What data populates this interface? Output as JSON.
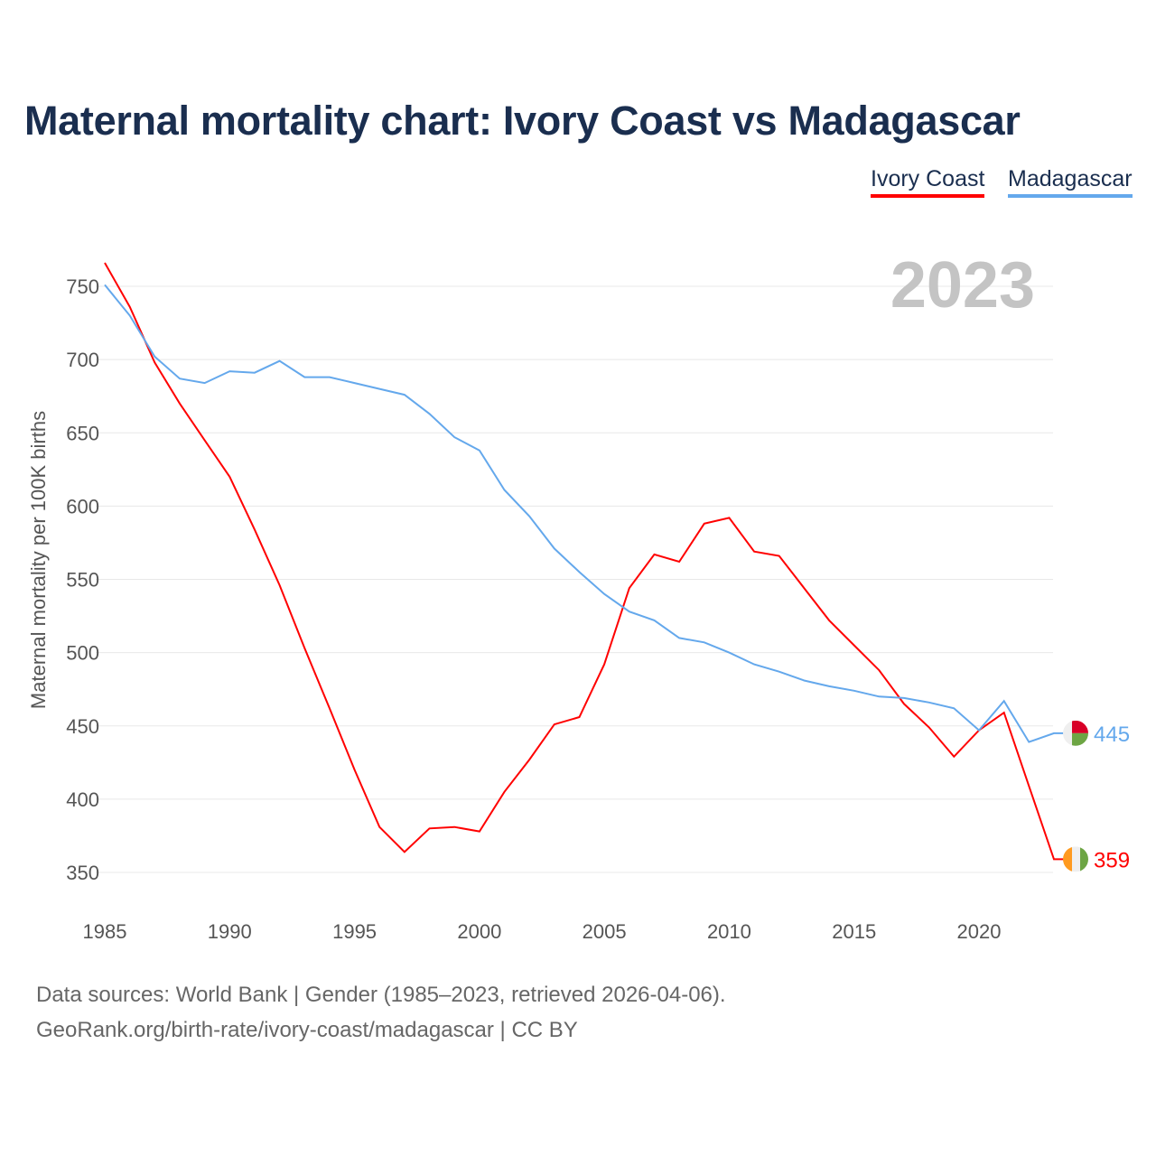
{
  "chart_data": {
    "type": "line",
    "title": "Maternal mortality chart: Ivory Coast vs Madagascar",
    "ylabel": "Maternal mortality per 100K births",
    "xlabel": "",
    "year_label": "2023",
    "xlim": [
      1985,
      2023
    ],
    "ylim": [
      330,
      770
    ],
    "xticks": [
      1985,
      1990,
      1995,
      2000,
      2005,
      2010,
      2015,
      2020
    ],
    "yticks": [
      350,
      400,
      450,
      500,
      550,
      600,
      650,
      700,
      750
    ],
    "grid": true,
    "legend_position": "top-right",
    "x": [
      1985,
      1986,
      1987,
      1988,
      1989,
      1990,
      1991,
      1992,
      1993,
      1994,
      1995,
      1996,
      1997,
      1998,
      1999,
      2000,
      2001,
      2002,
      2003,
      2004,
      2005,
      2006,
      2007,
      2008,
      2009,
      2010,
      2011,
      2012,
      2013,
      2014,
      2015,
      2016,
      2017,
      2018,
      2019,
      2020,
      2021,
      2022,
      2023
    ],
    "series": [
      {
        "name": "Ivory Coast",
        "color": "#ff0000",
        "end_label": "359",
        "values": [
          766,
          736,
          698,
          670,
          645,
          620,
          584,
          546,
          503,
          462,
          420,
          381,
          364,
          380,
          381,
          378,
          405,
          427,
          451,
          456,
          492,
          544,
          567,
          562,
          588,
          592,
          569,
          566,
          544,
          522,
          505,
          488,
          465,
          449,
          429,
          447,
          459,
          409,
          359
        ]
      },
      {
        "name": "Madagascar",
        "color": "#64a8ec",
        "end_label": "445",
        "values": [
          751,
          730,
          702,
          687,
          684,
          692,
          691,
          699,
          688,
          688,
          684,
          680,
          676,
          663,
          647,
          638,
          611,
          593,
          571,
          555,
          540,
          528,
          522,
          510,
          507,
          500,
          492,
          487,
          481,
          477,
          474,
          470,
          469,
          466,
          462,
          447,
          467,
          439,
          445
        ]
      }
    ]
  },
  "footer": {
    "line1": "Data sources: World Bank | Gender (1985–2023, retrieved 2026-04-06).",
    "line2": "GeoRank.org/birth-rate/ivory-coast/madagascar | CC BY"
  }
}
